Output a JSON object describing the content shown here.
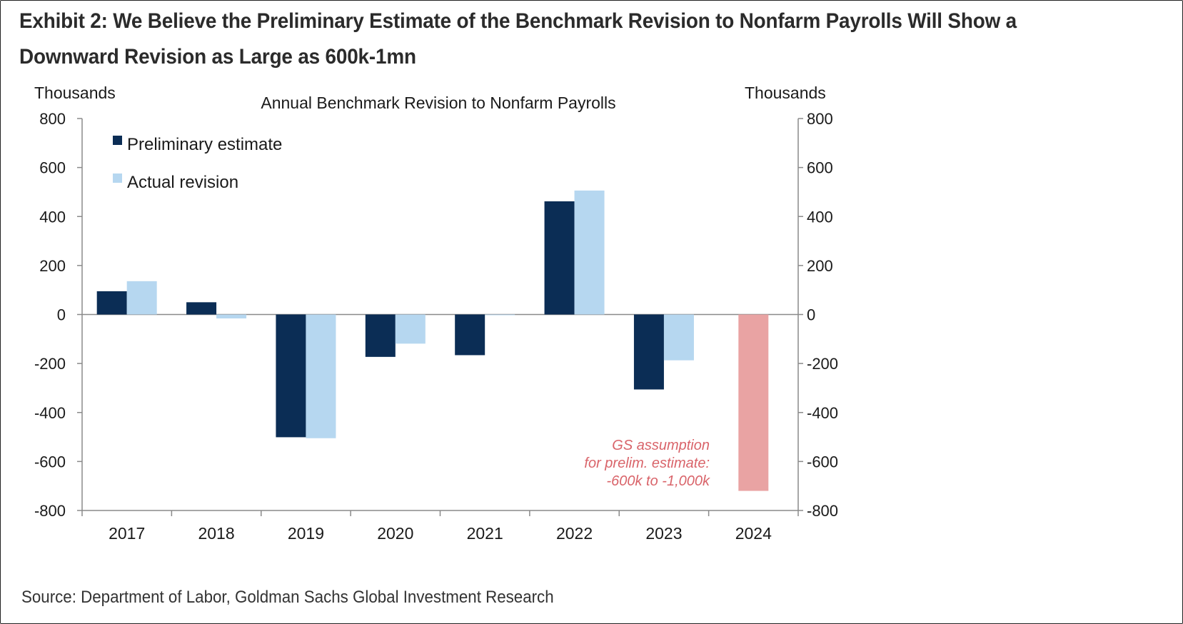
{
  "exhibit": {
    "heading_line1": "Exhibit 2: We Believe the Preliminary Estimate of the Benchmark Revision to Nonfarm Payrolls Will Show a",
    "heading_line2": "Downward Revision as Large as 600k-1mn",
    "source": "Source: Department of Labor, Goldman Sachs Global Investment Research"
  },
  "chart_data": {
    "type": "bar",
    "title": "Annual Benchmark Revision to Nonfarm Payrolls",
    "ylabel_left": "Thousands",
    "ylabel_right": "Thousands",
    "ylim": [
      -800,
      800
    ],
    "yticks": [
      800,
      600,
      400,
      200,
      0,
      -200,
      -400,
      -600,
      -800
    ],
    "categories": [
      "2017",
      "2018",
      "2019",
      "2020",
      "2021",
      "2022",
      "2023",
      "2024"
    ],
    "series": [
      {
        "name": "Preliminary estimate",
        "color": "#0b2d55",
        "values": [
          95,
          50,
          -501,
          -173,
          -166,
          462,
          -306,
          null
        ]
      },
      {
        "name": "Actual revision",
        "color": "#b6d7f0",
        "values": [
          136,
          -16,
          -505,
          -119,
          -2,
          506,
          -187,
          null
        ]
      },
      {
        "name": "",
        "color": "#e9a3a3",
        "values": [
          null,
          null,
          null,
          null,
          null,
          null,
          null,
          -720
        ]
      }
    ],
    "annotation": {
      "lines": [
        "GS assumption",
        "for prelim. estimate:",
        "-600k to -1,000k"
      ],
      "color": "#d9646a"
    },
    "legend_position": "top-left",
    "grid": false
  }
}
